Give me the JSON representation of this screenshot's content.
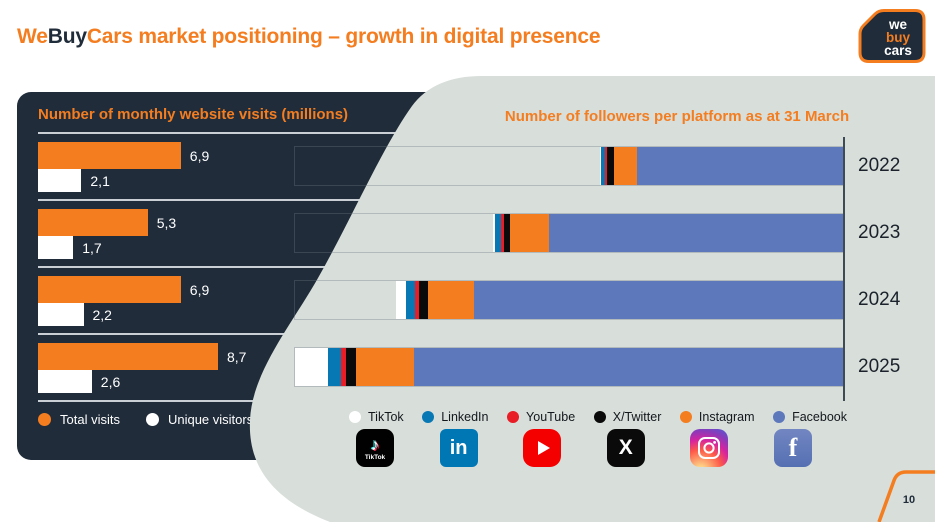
{
  "header": {
    "title_we": "We",
    "title_buy": "Buy",
    "title_tail": "Cars market positioning – growth in digital presence"
  },
  "logo": {
    "line1": "we",
    "line2": "buy",
    "line3": "cars"
  },
  "page_number": "10",
  "colors": {
    "orange": "#F47D20",
    "navy": "#202C3A",
    "blob_gray": "#D8DEDA",
    "axis": "#3F4A55",
    "tiktok": "#FFFFFF",
    "linkedin": "#0878B4",
    "youtube": "#E81D25",
    "x_twitter": "#0A0A0A",
    "instagram": "#F47D20",
    "facebook": "#5E78BC"
  },
  "icon_glyphs": {
    "tiktok_caption": "TikTok",
    "tiktok_note": "♪",
    "linkedin": "in",
    "x": "X",
    "facebook": "f"
  },
  "chart_data": [
    {
      "type": "bar",
      "orientation": "horizontal",
      "title": "Number of monthly website visits (millions)",
      "categories": [
        "",
        "",
        "",
        ""
      ],
      "series": [
        {
          "name": "Total visits",
          "color": "#F47D20",
          "values": [
            6.9,
            5.3,
            6.9,
            8.7
          ],
          "labels": [
            "6,9",
            "5,3",
            "6,9",
            "8,7"
          ]
        },
        {
          "name": "Unique visitors",
          "color": "#FFFFFF",
          "values": [
            2.1,
            1.7,
            2.2,
            2.6
          ],
          "labels": [
            "2,1",
            "1,7",
            "2,2",
            "2,6"
          ]
        }
      ],
      "xlim": [
        0,
        8.7
      ],
      "grid": false,
      "legend_position": "bottom"
    },
    {
      "type": "stacked-bar-horizontal",
      "title": "Number of followers per platform as at 31 March",
      "categories": [
        "2022",
        "2023",
        "2024",
        "2025"
      ],
      "units": "relative segment width, % of x-axis length (no numeric labels shown in chart)",
      "bars_right_aligned_to_axis": true,
      "series": [
        {
          "name": "TikTok",
          "color": "#FFFFFF",
          "values_pct": [
            0.2,
            0.35,
            1.8,
            6.0
          ]
        },
        {
          "name": "LinkedIn",
          "color": "#0878B4",
          "values_pct": [
            0.7,
            1.1,
            1.6,
            2.45
          ]
        },
        {
          "name": "YouTube",
          "color": "#E81D25",
          "values_pct": [
            0.45,
            0.55,
            0.8,
            0.9
          ]
        },
        {
          "name": "X/Twitter",
          "color": "#0A0A0A",
          "values_pct": [
            1.2,
            1.1,
            1.5,
            1.75
          ]
        },
        {
          "name": "Instagram",
          "color": "#F47D20",
          "values_pct": [
            4.2,
            7.1,
            8.5,
            10.7
          ]
        },
        {
          "name": "Facebook",
          "color": "#5E78BC",
          "values_pct": [
            37.6,
            53.6,
            67.3,
            78.2
          ]
        }
      ],
      "totals_pct": [
        44.35,
        63.8,
        81.5,
        100
      ],
      "grid": false,
      "legend_position": "bottom"
    }
  ]
}
